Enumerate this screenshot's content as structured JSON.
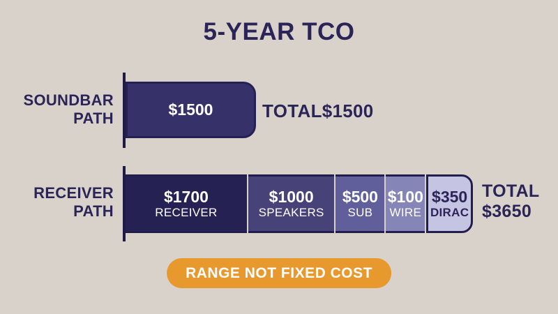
{
  "title": "5-YEAR TCO",
  "chart_data": {
    "type": "bar",
    "orientation": "horizontal-stacked",
    "title": "5-YEAR TCO",
    "unit": "USD",
    "rows": [
      {
        "label": "SOUNDBAR PATH",
        "label_line1": "SOUNDBAR",
        "label_line2": "PATH",
        "total_label": "TOTAL",
        "total_value": "$1500",
        "total_amount": 1500,
        "segments": [
          {
            "name": "",
            "value_label": "$1500",
            "amount": 1500,
            "color": "#373169"
          }
        ]
      },
      {
        "label": "RECEIVER PATH",
        "label_line1": "RECEIVER",
        "label_line2": "PATH",
        "total_label": "TOTAL",
        "total_value": "$3650",
        "total_amount": 3650,
        "segments": [
          {
            "name": "RECEIVER",
            "value_label": "$1700",
            "amount": 1700,
            "color": "#262153"
          },
          {
            "name": "SPEAKERS",
            "value_label": "$1000",
            "amount": 1000,
            "color": "#474379"
          },
          {
            "name": "SUB",
            "value_label": "$500",
            "amount": 500,
            "color": "#605f9c"
          },
          {
            "name": "WIRE",
            "value_label": "$100",
            "amount": 100,
            "color": "#8585b8"
          },
          {
            "name": "DIRAC",
            "value_label": "$350",
            "amount": 350,
            "color": "#c5c5e3"
          }
        ]
      }
    ],
    "footnote": "RANGE NOT FIXED COST",
    "legend": "none",
    "grid": false,
    "colors": {
      "background": "#d9d2cb",
      "text_navy": "#2a2457",
      "axis": "#1f1b45",
      "badge_orange": "#e8992e",
      "badge_text": "#ffffff",
      "segment_text": "#ffffff"
    }
  }
}
